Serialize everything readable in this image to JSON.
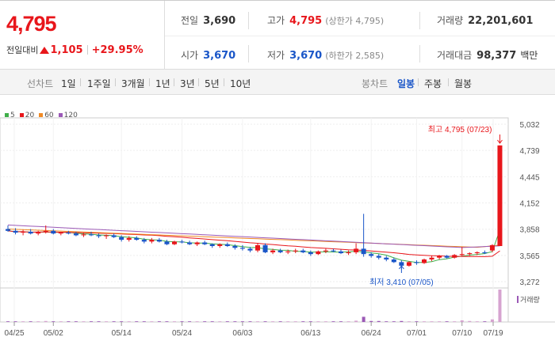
{
  "header": {
    "price": "4,795",
    "change_label": "전일대비",
    "change_value": "1,105",
    "change_pct": "+29.95%",
    "prev_close": {
      "label": "전일",
      "value": "3,690"
    },
    "open": {
      "label": "시가",
      "value": "3,670"
    },
    "high": {
      "label": "고가",
      "value": "4,795",
      "limit": "(상한가 4,795)"
    },
    "low": {
      "label": "저가",
      "value": "3,670",
      "limit": "(하한가 2,585)"
    },
    "volume": {
      "label": "거래량",
      "value": "22,201,601"
    },
    "turnover": {
      "label": "거래대금",
      "value": "98,377",
      "unit": "백만"
    }
  },
  "tabs": {
    "line_label": "선차트",
    "line": [
      "1일",
      "1주일",
      "3개월",
      "1년",
      "3년",
      "5년",
      "10년"
    ],
    "candle_label": "봉차트",
    "candle": [
      "일봉",
      "주봉",
      "월봉"
    ],
    "candle_active": "일봉"
  },
  "colors": {
    "up": "#e8161b",
    "down": "#1a56c8",
    "ma5": "#3fae49",
    "ma20": "#e8161b",
    "ma60": "#f08a24",
    "ma120": "#9b59b6"
  },
  "chart_data": {
    "type": "candlestick",
    "legend": [
      "5",
      "20",
      "60",
      "120"
    ],
    "y_ticks": [
      "5,032",
      "4,739",
      "4,445",
      "4,152",
      "3,858",
      "3,565",
      "3,272"
    ],
    "ylim": [
      3272,
      5032
    ],
    "x_ticks": [
      "04/25",
      "05/02",
      "05/14",
      "05/24",
      "06/03",
      "06/13",
      "06/24",
      "07/01",
      "07/10",
      "07/19"
    ],
    "annotations": {
      "high": "최고 4,795 (07/23)",
      "low": "최저 3,410 (07/05)"
    },
    "volume_label": "거래량",
    "candles": [
      [
        3860,
        3900,
        3830,
        3840
      ],
      [
        3840,
        3870,
        3800,
        3820
      ],
      [
        3820,
        3850,
        3790,
        3830
      ],
      [
        3830,
        3860,
        3800,
        3810
      ],
      [
        3810,
        3840,
        3790,
        3830
      ],
      [
        3830,
        3900,
        3810,
        3840
      ],
      [
        3840,
        3860,
        3800,
        3810
      ],
      [
        3810,
        3830,
        3790,
        3820
      ],
      [
        3820,
        3840,
        3800,
        3810
      ],
      [
        3810,
        3830,
        3780,
        3790
      ],
      [
        3790,
        3820,
        3770,
        3800
      ],
      [
        3800,
        3830,
        3780,
        3790
      ],
      [
        3790,
        3810,
        3760,
        3780
      ],
      [
        3780,
        3800,
        3750,
        3790
      ],
      [
        3790,
        3810,
        3760,
        3770
      ],
      [
        3770,
        3790,
        3720,
        3740
      ],
      [
        3740,
        3780,
        3720,
        3760
      ],
      [
        3760,
        3780,
        3730,
        3740
      ],
      [
        3740,
        3760,
        3700,
        3720
      ],
      [
        3720,
        3760,
        3700,
        3740
      ],
      [
        3740,
        3760,
        3710,
        3720
      ],
      [
        3720,
        3740,
        3680,
        3690
      ],
      [
        3690,
        3730,
        3680,
        3720
      ],
      [
        3720,
        3740,
        3700,
        3710
      ],
      [
        3710,
        3730,
        3680,
        3690
      ],
      [
        3690,
        3720,
        3670,
        3710
      ],
      [
        3710,
        3730,
        3680,
        3690
      ],
      [
        3690,
        3700,
        3650,
        3670
      ],
      [
        3670,
        3700,
        3650,
        3690
      ],
      [
        3690,
        3710,
        3660,
        3670
      ],
      [
        3670,
        3690,
        3630,
        3650
      ],
      [
        3650,
        3680,
        3620,
        3640
      ],
      [
        3640,
        3660,
        3600,
        3620
      ],
      [
        3620,
        3700,
        3600,
        3680
      ],
      [
        3680,
        3700,
        3590,
        3600
      ],
      [
        3600,
        3640,
        3580,
        3620
      ],
      [
        3620,
        3640,
        3590,
        3600
      ],
      [
        3600,
        3630,
        3580,
        3610
      ],
      [
        3610,
        3640,
        3590,
        3620
      ],
      [
        3620,
        3640,
        3590,
        3600
      ],
      [
        3600,
        3620,
        3560,
        3580
      ],
      [
        3580,
        3620,
        3570,
        3610
      ],
      [
        3610,
        3640,
        3590,
        3620
      ],
      [
        3620,
        3640,
        3600,
        3610
      ],
      [
        3610,
        3630,
        3580,
        3590
      ],
      [
        3590,
        3620,
        3570,
        3600
      ],
      [
        3600,
        3700,
        3580,
        3640
      ],
      [
        3640,
        4030,
        3550,
        3580
      ],
      [
        3580,
        3600,
        3540,
        3560
      ],
      [
        3560,
        3580,
        3520,
        3540
      ],
      [
        3540,
        3560,
        3500,
        3520
      ],
      [
        3520,
        3540,
        3480,
        3490
      ],
      [
        3490,
        3510,
        3410,
        3450
      ],
      [
        3450,
        3500,
        3440,
        3490
      ],
      [
        3490,
        3510,
        3460,
        3480
      ],
      [
        3480,
        3530,
        3470,
        3520
      ],
      [
        3520,
        3560,
        3500,
        3540
      ],
      [
        3540,
        3570,
        3520,
        3560
      ],
      [
        3560,
        3570,
        3530,
        3540
      ],
      [
        3540,
        3580,
        3530,
        3570
      ],
      [
        3570,
        3660,
        3550,
        3580
      ],
      [
        3580,
        3600,
        3560,
        3590
      ],
      [
        3590,
        3610,
        3570,
        3600
      ],
      [
        3600,
        3620,
        3580,
        3590
      ],
      [
        3620,
        3690,
        3600,
        3680
      ],
      [
        3670,
        4795,
        3670,
        4795
      ]
    ],
    "volumes": [
      2,
      2,
      2,
      2,
      2,
      3,
      2,
      2,
      2,
      2,
      2,
      2,
      2,
      2,
      2,
      2,
      2,
      2,
      2,
      2,
      2,
      2,
      2,
      2,
      2,
      2,
      2,
      2,
      2,
      2,
      2,
      2,
      2,
      2,
      2,
      2,
      2,
      2,
      2,
      2,
      2,
      2,
      2,
      2,
      2,
      2,
      4,
      16,
      3,
      3,
      2,
      2,
      3,
      2,
      2,
      2,
      2,
      2,
      2,
      2,
      5,
      3,
      2,
      2,
      8,
      100
    ]
  }
}
